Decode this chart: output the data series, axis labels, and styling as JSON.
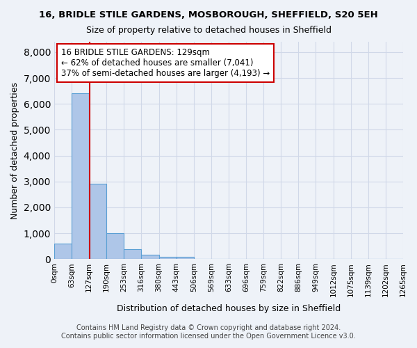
{
  "title1": "16, BRIDLE STILE GARDENS, MOSBOROUGH, SHEFFIELD, S20 5EH",
  "title2": "Size of property relative to detached houses in Sheffield",
  "xlabel": "Distribution of detached houses by size in Sheffield",
  "ylabel": "Number of detached properties",
  "footer1": "Contains HM Land Registry data © Crown copyright and database right 2024.",
  "footer2": "Contains public sector information licensed under the Open Government Licence v3.0.",
  "bin_labels": [
    "0sqm",
    "63sqm",
    "127sqm",
    "190sqm",
    "253sqm",
    "316sqm",
    "380sqm",
    "443sqm",
    "506sqm",
    "569sqm",
    "633sqm",
    "696sqm",
    "759sqm",
    "822sqm",
    "886sqm",
    "949sqm",
    "1012sqm",
    "1075sqm",
    "1139sqm",
    "1202sqm",
    "1265sqm"
  ],
  "bar_values": [
    600,
    6400,
    2900,
    1000,
    380,
    170,
    100,
    80,
    10,
    5,
    2,
    1,
    0,
    0,
    0,
    0,
    0,
    0,
    0,
    0
  ],
  "bar_color": "#aec6e8",
  "bar_edge_color": "#5a9fd4",
  "grid_color": "#d0d8e8",
  "background_color": "#eef2f8",
  "vline_x": 2.03,
  "vline_color": "#cc0000",
  "annotation_text": "16 BRIDLE STILE GARDENS: 129sqm\n← 62% of detached houses are smaller (7,041)\n37% of semi-detached houses are larger (4,193) →",
  "annotation_box_color": "#ffffff",
  "annotation_box_edge_color": "#cc0000",
  "ylim": [
    0,
    8400
  ],
  "yticks": [
    0,
    1000,
    2000,
    3000,
    4000,
    5000,
    6000,
    7000,
    8000
  ]
}
